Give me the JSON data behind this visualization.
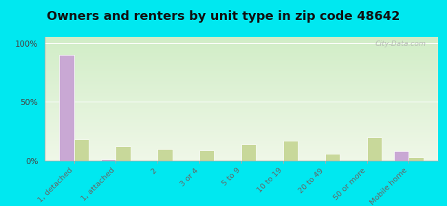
{
  "title": "Owners and renters by unit type in zip code 48642",
  "categories": [
    "1, detached",
    "1, attached",
    "2",
    "3 or 4",
    "5 to 9",
    "10 to 19",
    "20 to 49",
    "50 or more",
    "Mobile home"
  ],
  "owner_values": [
    90,
    1,
    0,
    0,
    0,
    0,
    0,
    0,
    8
  ],
  "renter_values": [
    18,
    12,
    10,
    9,
    14,
    17,
    6,
    20,
    3
  ],
  "owner_color": "#c9a8d4",
  "renter_color": "#c8d89a",
  "bg_color_top": "#d4edcc",
  "bg_color_bottom": "#f0f8e8",
  "outer_bg": "#00e8f0",
  "yticks": [
    0,
    50,
    100
  ],
  "ytick_labels": [
    "0%",
    "50%",
    "100%"
  ],
  "title_fontsize": 13,
  "bar_width": 0.35,
  "watermark": "City-Data.com"
}
